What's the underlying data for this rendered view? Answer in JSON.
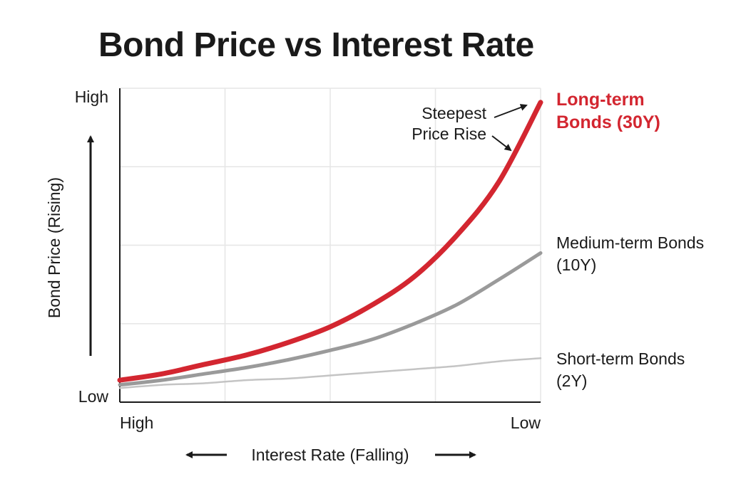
{
  "chart_data": {
    "type": "line",
    "title": "Bond Price vs Interest Rate",
    "xlabel": "Interest Rate (Falling)",
    "ylabel": "Bond Price (Rising)",
    "x_tick_labels": [
      "High",
      "Low"
    ],
    "y_tick_labels": [
      "Low",
      "High"
    ],
    "grid": true,
    "x": [
      0,
      0.1,
      0.2,
      0.3,
      0.4,
      0.5,
      0.6,
      0.7,
      0.8,
      0.9,
      1.0
    ],
    "series": [
      {
        "name": "Long-term Bonds (30Y)",
        "color": "#d32630",
        "values": [
          0.07,
          0.09,
          0.12,
          0.15,
          0.19,
          0.24,
          0.31,
          0.4,
          0.53,
          0.7,
          0.955
        ]
      },
      {
        "name": "Medium-term Bonds (10Y)",
        "color": "#9a9a9a",
        "values": [
          0.055,
          0.07,
          0.09,
          0.11,
          0.135,
          0.165,
          0.2,
          0.25,
          0.31,
          0.39,
          0.475
        ]
      },
      {
        "name": "Short-term Bonds (2Y)",
        "color": "#c4c4c4",
        "values": [
          0.045,
          0.055,
          0.06,
          0.07,
          0.075,
          0.085,
          0.095,
          0.105,
          0.115,
          0.13,
          0.14
        ]
      }
    ],
    "annotations": [
      {
        "text_lines": [
          "Steepest",
          "Price Rise"
        ]
      }
    ]
  }
}
